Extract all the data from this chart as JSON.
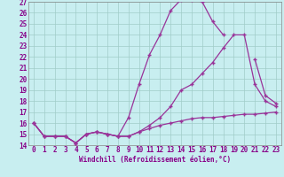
{
  "xlabel": "Windchill (Refroidissement éolien,°C)",
  "background_color": "#c8eef0",
  "grid_color": "#a0ccc8",
  "line_color": "#993399",
  "xlim": [
    -0.5,
    23.5
  ],
  "ylim": [
    14,
    27
  ],
  "yticks": [
    14,
    15,
    16,
    17,
    18,
    19,
    20,
    21,
    22,
    23,
    24,
    25,
    26,
    27
  ],
  "xticks": [
    0,
    1,
    2,
    3,
    4,
    5,
    6,
    7,
    8,
    9,
    10,
    11,
    12,
    13,
    14,
    15,
    16,
    17,
    18,
    19,
    20,
    21,
    22,
    23
  ],
  "line1_y": [
    16.0,
    14.8,
    14.8,
    14.8,
    14.2,
    15.0,
    15.2,
    15.0,
    14.8,
    16.5,
    19.5,
    22.2,
    24.0,
    26.2,
    27.2,
    27.2,
    27.0,
    25.2,
    24.0,
    null,
    null,
    21.8,
    18.5,
    17.8
  ],
  "line2_y": [
    16.0,
    14.8,
    14.8,
    14.8,
    14.2,
    15.0,
    15.2,
    15.0,
    14.8,
    14.8,
    15.2,
    15.8,
    16.5,
    17.5,
    19.0,
    19.5,
    20.5,
    21.5,
    22.8,
    24.0,
    24.0,
    19.5,
    18.0,
    17.5
  ],
  "line3_y": [
    16.0,
    14.8,
    14.8,
    14.8,
    14.2,
    15.0,
    15.2,
    15.0,
    14.8,
    14.8,
    15.2,
    15.5,
    15.8,
    16.0,
    16.2,
    16.4,
    16.5,
    16.5,
    16.6,
    16.7,
    16.8,
    16.8,
    16.9,
    17.0
  ],
  "tick_fontsize": 5.5,
  "xlabel_fontsize": 5.5
}
